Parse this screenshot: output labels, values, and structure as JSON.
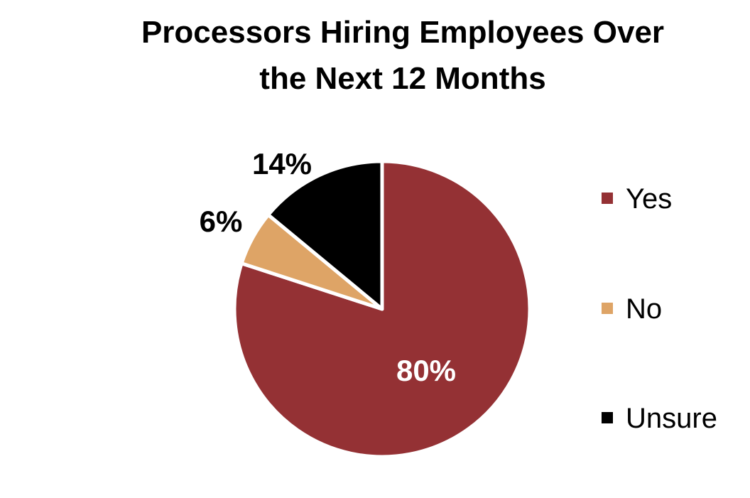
{
  "chart_data": {
    "type": "pie",
    "title": "Processors Hiring Employees Over the Next 12 Months",
    "title_lines": [
      "Processors Hiring Employees Over",
      "the Next 12 Months"
    ],
    "categories": [
      "Yes",
      "No",
      "Unsure"
    ],
    "values": [
      80,
      6,
      14
    ],
    "data_labels": [
      "80%",
      "6%",
      "14%"
    ],
    "colors": [
      "#943134",
      "#DEA466",
      "#000000"
    ],
    "label_colors": [
      "#ffffff",
      "#000000",
      "#000000"
    ],
    "legend": {
      "placement": "right",
      "entries": [
        "Yes",
        "No",
        "Unsure"
      ]
    },
    "start_angle_deg": 0,
    "direction": "clockwise"
  }
}
